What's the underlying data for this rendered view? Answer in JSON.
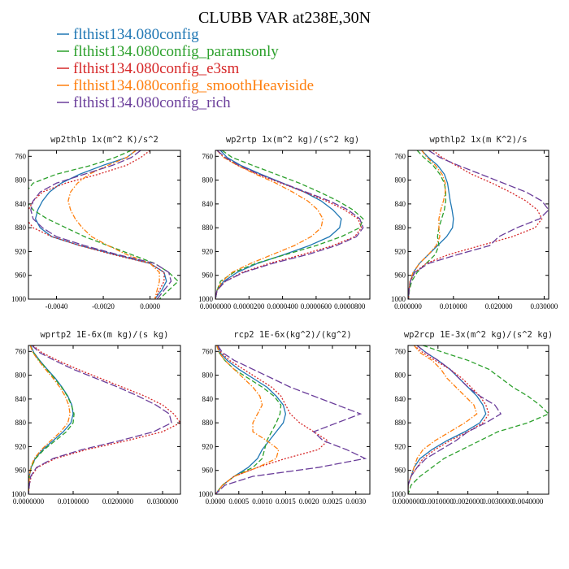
{
  "figure": {
    "title": "CLUBB VAR at238E,30N"
  },
  "legend": [
    {
      "name": "flthist134.080config",
      "color": "#1f77b4",
      "dash": "solid"
    },
    {
      "name": "flthist134.080config_paramsonly",
      "color": "#2ca02c",
      "dash": "dashed"
    },
    {
      "name": "flthist134.080config_e3sm",
      "color": "#d62728",
      "dash": "dotted"
    },
    {
      "name": "flthist134.080config_smoothHeaviside",
      "color": "#ff7f0e",
      "dash": "dashdot"
    },
    {
      "name": "flthist134.080config_rich",
      "color": "#6a3d9a",
      "dash": "longdash"
    }
  ],
  "chart_data": [
    {
      "type": "line",
      "title": "wp2thlp  1x(m^2 K)/s^2",
      "xlim": [
        -0.0052,
        0.0013
      ],
      "ylim": [
        1000,
        750
      ],
      "xticks": [
        "-0.0040",
        "-0.0020",
        "0.0000"
      ],
      "xtick_values": [
        -0.004,
        -0.002,
        0.0
      ],
      "yticks": [
        "760",
        "800",
        "840",
        "880",
        "920",
        "960",
        "1000"
      ],
      "ytick_values": [
        760,
        800,
        840,
        880,
        920,
        960,
        1000
      ],
      "y": [
        750,
        762,
        775,
        790,
        805,
        820,
        835,
        850,
        865,
        880,
        895,
        910,
        925,
        940,
        955,
        970,
        985,
        1000
      ],
      "series": [
        {
          "values": [
            -0.0006,
            -0.001,
            -0.002,
            -0.003,
            -0.0038,
            -0.0043,
            -0.0046,
            -0.0048,
            -0.0049,
            -0.0047,
            -0.0042,
            -0.003,
            -0.0015,
            0.0,
            0.0006,
            0.0007,
            0.0005,
            0.0002
          ]
        },
        {
          "values": [
            -0.0008,
            -0.0015,
            -0.0025,
            -0.004,
            -0.005,
            -0.0053,
            -0.0053,
            -0.005,
            -0.0044,
            -0.0036,
            -0.0028,
            -0.0018,
            -0.0008,
            0.0002,
            0.0008,
            0.0012,
            0.0008,
            0.0004
          ]
        },
        {
          "values": [
            0.0,
            -0.0004,
            -0.001,
            -0.0022,
            -0.0036,
            -0.0046,
            -0.005,
            -0.0052,
            -0.0053,
            -0.005,
            -0.0042,
            -0.003,
            -0.0016,
            0.0,
            0.0006,
            0.0006,
            0.0004,
            0.0002
          ]
        },
        {
          "values": [
            -0.0006,
            -0.001,
            -0.0018,
            -0.0026,
            -0.0031,
            -0.0034,
            -0.0035,
            -0.0034,
            -0.0032,
            -0.0029,
            -0.0025,
            -0.0018,
            -0.001,
            0.0,
            0.0004,
            0.0004,
            0.0003,
            0.0002
          ]
        },
        {
          "values": [
            -0.0004,
            -0.0008,
            -0.0016,
            -0.0028,
            -0.004,
            -0.0047,
            -0.005,
            -0.0051,
            -0.005,
            -0.0046,
            -0.004,
            -0.0028,
            -0.0014,
            0.0002,
            0.0008,
            0.0009,
            0.0006,
            0.0003
          ]
        }
      ]
    },
    {
      "type": "line",
      "title": "wp2rtp  1x(m^2 kg)/(s^2 kg)",
      "xlim": [
        0.0,
        9.2e-05
      ],
      "ylim": [
        1000,
        750
      ],
      "xticks": [
        "0.0000000",
        "0.0000200",
        "0.0000400",
        "0.0000600",
        "0.0000800"
      ],
      "xtick_values": [
        0.0,
        2e-05,
        4e-05,
        6e-05,
        8e-05
      ],
      "yticks": [
        "760",
        "800",
        "840",
        "880",
        "920",
        "960",
        "1000"
      ],
      "ytick_values": [
        760,
        800,
        840,
        880,
        920,
        960,
        1000
      ],
      "y": [
        750,
        762,
        775,
        790,
        805,
        820,
        835,
        850,
        865,
        880,
        895,
        910,
        925,
        940,
        955,
        970,
        985,
        1000
      ],
      "series": [
        {
          "values": [
            3e-06,
            7e-06,
            1.5e-05,
            2.7e-05,
            4e-05,
            5.3e-05,
            6.3e-05,
            7e-05,
            7.5e-05,
            7.4e-05,
            6.8e-05,
            5.6e-05,
            4.1e-05,
            2.5e-05,
            1.3e-05,
            5e-06,
            1e-06,
            0.0
          ]
        },
        {
          "values": [
            4e-06,
            1e-05,
            2.2e-05,
            3.6e-05,
            5e-05,
            6.2e-05,
            7.3e-05,
            8.2e-05,
            8.8e-05,
            8.6e-05,
            7.5e-05,
            6e-05,
            4.2e-05,
            2.4e-05,
            1.1e-05,
            3e-06,
            1e-06,
            0.0
          ]
        },
        {
          "values": [
            1e-06,
            5e-06,
            1.3e-05,
            2.5e-05,
            3.9e-05,
            5.3e-05,
            6.6e-05,
            7.7e-05,
            8.5e-05,
            8.7e-05,
            8.3e-05,
            7e-05,
            5.2e-05,
            3.2e-05,
            1.6e-05,
            6e-06,
            1e-06,
            0.0
          ]
        },
        {
          "values": [
            1e-06,
            5e-06,
            1.3e-05,
            2.4e-05,
            3.6e-05,
            4.6e-05,
            5.5e-05,
            6.1e-05,
            6.4e-05,
            6.3e-05,
            5.7e-05,
            4.7e-05,
            3.4e-05,
            2.1e-05,
            1e-05,
            4e-06,
            1e-06,
            0.0
          ]
        },
        {
          "values": [
            1e-06,
            6e-06,
            1.4e-05,
            2.6e-05,
            4e-05,
            5.4e-05,
            6.8e-05,
            7.9e-05,
            8.6e-05,
            8.8e-05,
            8.4e-05,
            7.2e-05,
            5.5e-05,
            3.4e-05,
            1.7e-05,
            6e-06,
            1e-06,
            0.0
          ]
        }
      ]
    },
    {
      "type": "line",
      "title": "wpthlp2  1x(m K^2)/s",
      "xlim": [
        0.0,
        0.031
      ],
      "ylim": [
        1000,
        750
      ],
      "xticks": [
        "0.000000",
        "0.010000",
        "0.020000",
        "0.030000"
      ],
      "xtick_values": [
        0.0,
        0.01,
        0.02,
        0.03
      ],
      "yticks": [
        "760",
        "800",
        "840",
        "880",
        "920",
        "960",
        "1000"
      ],
      "ytick_values": [
        760,
        800,
        840,
        880,
        920,
        960,
        1000
      ],
      "y": [
        750,
        762,
        775,
        790,
        805,
        820,
        835,
        850,
        865,
        880,
        895,
        910,
        925,
        940,
        955,
        970,
        985,
        1000
      ],
      "series": [
        {
          "values": [
            0.003,
            0.0045,
            0.0065,
            0.008,
            0.0087,
            0.009,
            0.0093,
            0.0097,
            0.01,
            0.0098,
            0.0085,
            0.0065,
            0.0045,
            0.0025,
            0.0012,
            0.0005,
            0.0002,
            0.0001
          ]
        },
        {
          "values": [
            0.002,
            0.0035,
            0.0055,
            0.007,
            0.008,
            0.0083,
            0.0083,
            0.008,
            0.0074,
            0.0068,
            0.0065,
            0.0068,
            0.006,
            0.004,
            0.002,
            0.0008,
            0.0003,
            0.0001
          ]
        },
        {
          "values": [
            0.0055,
            0.0075,
            0.0105,
            0.014,
            0.0185,
            0.0225,
            0.026,
            0.0285,
            0.0295,
            0.028,
            0.023,
            0.016,
            0.009,
            0.004,
            0.0015,
            0.0005,
            0.0002,
            0.0001
          ]
        },
        {
          "values": [
            0.003,
            0.0042,
            0.006,
            0.0075,
            0.0082,
            0.0082,
            0.0078,
            0.0072,
            0.0068,
            0.0068,
            0.007,
            0.0062,
            0.0045,
            0.0025,
            0.0011,
            0.0004,
            0.0002,
            0.0001
          ]
        },
        {
          "values": [
            0.0045,
            0.007,
            0.011,
            0.016,
            0.021,
            0.026,
            0.0295,
            0.031,
            0.029,
            0.024,
            0.02,
            0.018,
            0.011,
            0.0045,
            0.0015,
            0.0005,
            0.0002,
            0.0001
          ]
        }
      ]
    },
    {
      "type": "line",
      "title": "wprtp2  1E-6x(m kg)/(s kg)",
      "xlim": [
        0.0,
        0.034
      ],
      "ylim": [
        1000,
        750
      ],
      "xticks": [
        "0.0000000",
        "0.0100000",
        "0.0200000",
        "0.0300000"
      ],
      "xtick_values": [
        0.0,
        0.01,
        0.02,
        0.03
      ],
      "yticks": [
        "760",
        "800",
        "840",
        "880",
        "920",
        "960",
        "1000"
      ],
      "ytick_values": [
        760,
        800,
        840,
        880,
        920,
        960,
        1000
      ],
      "y": [
        750,
        762,
        775,
        790,
        805,
        820,
        835,
        850,
        865,
        880,
        895,
        910,
        925,
        940,
        955,
        970,
        985,
        1000
      ],
      "series": [
        {
          "values": [
            0.0005,
            0.0012,
            0.0025,
            0.0042,
            0.006,
            0.0075,
            0.0088,
            0.0097,
            0.01,
            0.0095,
            0.0078,
            0.0055,
            0.0032,
            0.0015,
            0.0006,
            0.0002,
            0.0001,
            0.0
          ]
        },
        {
          "values": [
            0.0004,
            0.0011,
            0.0024,
            0.0041,
            0.0058,
            0.0074,
            0.0087,
            0.0096,
            0.0102,
            0.01,
            0.0085,
            0.006,
            0.0035,
            0.0016,
            0.0006,
            0.0002,
            0.0001,
            0.0
          ]
        },
        {
          "values": [
            0.001,
            0.003,
            0.0065,
            0.011,
            0.016,
            0.021,
            0.026,
            0.03,
            0.0325,
            0.034,
            0.03,
            0.022,
            0.013,
            0.006,
            0.002,
            0.0006,
            0.0002,
            0.0
          ]
        },
        {
          "values": [
            0.0004,
            0.001,
            0.0022,
            0.0038,
            0.0055,
            0.007,
            0.0082,
            0.009,
            0.0093,
            0.0088,
            0.0072,
            0.005,
            0.0029,
            0.0013,
            0.0005,
            0.0002,
            0.0001,
            0.0
          ]
        },
        {
          "values": [
            0.0008,
            0.0025,
            0.0058,
            0.01,
            0.015,
            0.02,
            0.0245,
            0.0285,
            0.0315,
            0.032,
            0.028,
            0.0205,
            0.012,
            0.0055,
            0.0018,
            0.0005,
            0.0002,
            0.0
          ]
        }
      ]
    },
    {
      "type": "line",
      "title": "rcp2  1E-6x(kg^2)/(kg^2)",
      "xlim": [
        0.0,
        0.0033
      ],
      "ylim": [
        1000,
        750
      ],
      "xticks": [
        "0.0000",
        "0.0005",
        "0.0010",
        "0.0015",
        "0.0020",
        "0.0025",
        "0.0030"
      ],
      "xtick_values": [
        0.0,
        0.0005,
        0.001,
        0.0015,
        0.002,
        0.0025,
        0.003
      ],
      "yticks": [
        "760",
        "800",
        "840",
        "880",
        "920",
        "960",
        "1000"
      ],
      "ytick_values": [
        760,
        800,
        840,
        880,
        920,
        960,
        1000
      ],
      "y": [
        750,
        762,
        775,
        790,
        805,
        820,
        835,
        850,
        865,
        880,
        895,
        910,
        925,
        940,
        955,
        970,
        985,
        1000
      ],
      "series": [
        {
          "values": [
            5e-05,
            0.0001,
            0.00025,
            0.0005,
            0.0008,
            0.0011,
            0.0013,
            0.00145,
            0.0015,
            0.00145,
            0.0013,
            0.00115,
            0.001,
            0.0009,
            0.0007,
            0.0004,
            0.00015,
            0.0
          ]
        },
        {
          "values": [
            3e-05,
            8e-05,
            0.0002,
            0.0004,
            0.0007,
            0.001,
            0.00125,
            0.0014,
            0.00138,
            0.0013,
            0.0012,
            0.0011,
            0.00105,
            0.001,
            0.0008,
            0.0004,
            0.00015,
            0.0
          ]
        },
        {
          "values": [
            5e-05,
            0.00012,
            0.0003,
            0.0006,
            0.0009,
            0.0012,
            0.0014,
            0.0015,
            0.0016,
            0.0018,
            0.0021,
            0.0024,
            0.0022,
            0.0015,
            0.0009,
            0.0004,
            0.00015,
            0.0
          ]
        },
        {
          "values": [
            3e-05,
            8e-05,
            0.0002,
            0.0004,
            0.0006,
            0.0008,
            0.00095,
            0.001,
            0.0009,
            0.0008,
            0.0008,
            0.0011,
            0.00135,
            0.0013,
            0.0009,
            0.0004,
            0.00015,
            0.0
          ]
        },
        {
          "values": [
            5e-05,
            0.00015,
            0.0004,
            0.0008,
            0.0012,
            0.0016,
            0.0021,
            0.0026,
            0.0031,
            0.0026,
            0.0021,
            0.0023,
            0.0028,
            0.0032,
            0.0022,
            0.0008,
            0.0002,
            0.0
          ]
        }
      ]
    },
    {
      "type": "line",
      "title": "wp2rcp  1E-3x(m^2 kg)/(s^2 kg)",
      "xlim": [
        0.0,
        0.0047
      ],
      "ylim": [
        1000,
        750
      ],
      "xticks": [
        "0.0000000",
        "0.0010000",
        "0.0020000",
        "0.0030000",
        "0.0040000"
      ],
      "xtick_values": [
        0.0,
        0.001,
        0.002,
        0.003,
        0.004
      ],
      "yticks": [
        "760",
        "800",
        "840",
        "880",
        "920",
        "960",
        "1000"
      ],
      "ytick_values": [
        760,
        800,
        840,
        880,
        920,
        960,
        1000
      ],
      "y": [
        750,
        762,
        775,
        790,
        805,
        820,
        835,
        850,
        865,
        880,
        895,
        910,
        925,
        940,
        955,
        970,
        985,
        1000
      ],
      "series": [
        {
          "values": [
            0.0003,
            0.0006,
            0.001,
            0.0014,
            0.0017,
            0.002,
            0.0023,
            0.0025,
            0.0026,
            0.0024,
            0.0019,
            0.0013,
            0.0008,
            0.0004,
            0.0002,
            0.0001,
            0.0,
            0.0
          ]
        },
        {
          "values": [
            0.0005,
            0.0012,
            0.002,
            0.0027,
            0.0031,
            0.0035,
            0.004,
            0.0044,
            0.0047,
            0.004,
            0.003,
            0.0024,
            0.0018,
            0.0012,
            0.0008,
            0.0004,
            0.0001,
            0.0
          ]
        },
        {
          "values": [
            0.0002,
            0.0005,
            0.0009,
            0.0014,
            0.0018,
            0.0021,
            0.0024,
            0.0026,
            0.0027,
            0.0025,
            0.002,
            0.0014,
            0.0009,
            0.0005,
            0.0003,
            0.0001,
            0.0,
            0.0
          ]
        },
        {
          "values": [
            0.0002,
            0.0004,
            0.0008,
            0.0011,
            0.0013,
            0.0016,
            0.0019,
            0.0022,
            0.0023,
            0.0019,
            0.0014,
            0.0009,
            0.0005,
            0.0003,
            0.0002,
            0.0001,
            0.0,
            0.0
          ]
        },
        {
          "values": [
            0.0003,
            0.0006,
            0.001,
            0.0014,
            0.0017,
            0.002,
            0.0024,
            0.0029,
            0.0031,
            0.0026,
            0.002,
            0.0016,
            0.0011,
            0.0006,
            0.0003,
            0.0001,
            0.0,
            0.0
          ]
        }
      ]
    }
  ]
}
